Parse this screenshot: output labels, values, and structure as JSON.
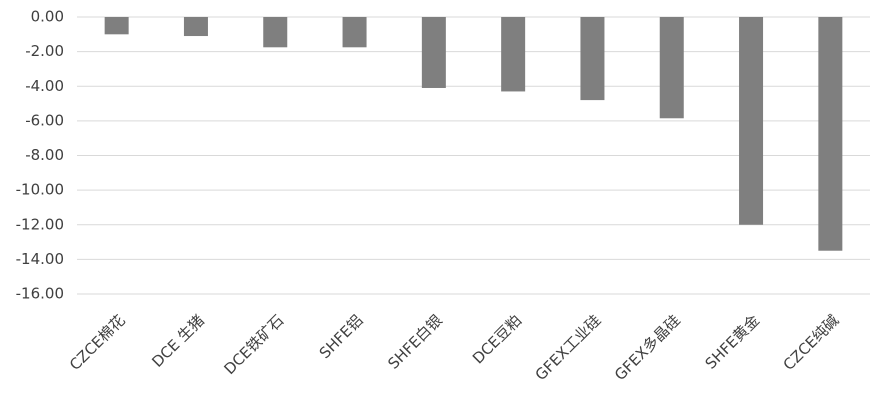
{
  "chart_data": {
    "type": "bar",
    "categories": [
      "CZCE棉花",
      "DCE 生猪",
      "DCE铁矿石",
      "SHFE铝",
      "SHFE白银",
      "DCE豆粕",
      "GFEX工业硅",
      "GFEX多晶硅",
      "SHFE黄金",
      "CZCE纯碱"
    ],
    "values": [
      -1.0,
      -1.1,
      -1.75,
      -1.75,
      -4.1,
      -4.3,
      -4.8,
      -5.85,
      -12.0,
      -13.5
    ],
    "color": "#7f7f7f",
    "ylim": [
      -16,
      0
    ],
    "yticks": [
      {
        "value": 0,
        "label": "0.00"
      },
      {
        "value": -2,
        "label": "-2.00"
      },
      {
        "value": -4,
        "label": "-4.00"
      },
      {
        "value": -6,
        "label": "-6.00"
      },
      {
        "value": -8,
        "label": "-8.00"
      },
      {
        "value": -10,
        "label": "-10.00"
      },
      {
        "value": -12,
        "label": "-12.00"
      },
      {
        "value": -14,
        "label": "-14.00"
      },
      {
        "value": -16,
        "label": "-16.00"
      }
    ],
    "grid": true
  }
}
